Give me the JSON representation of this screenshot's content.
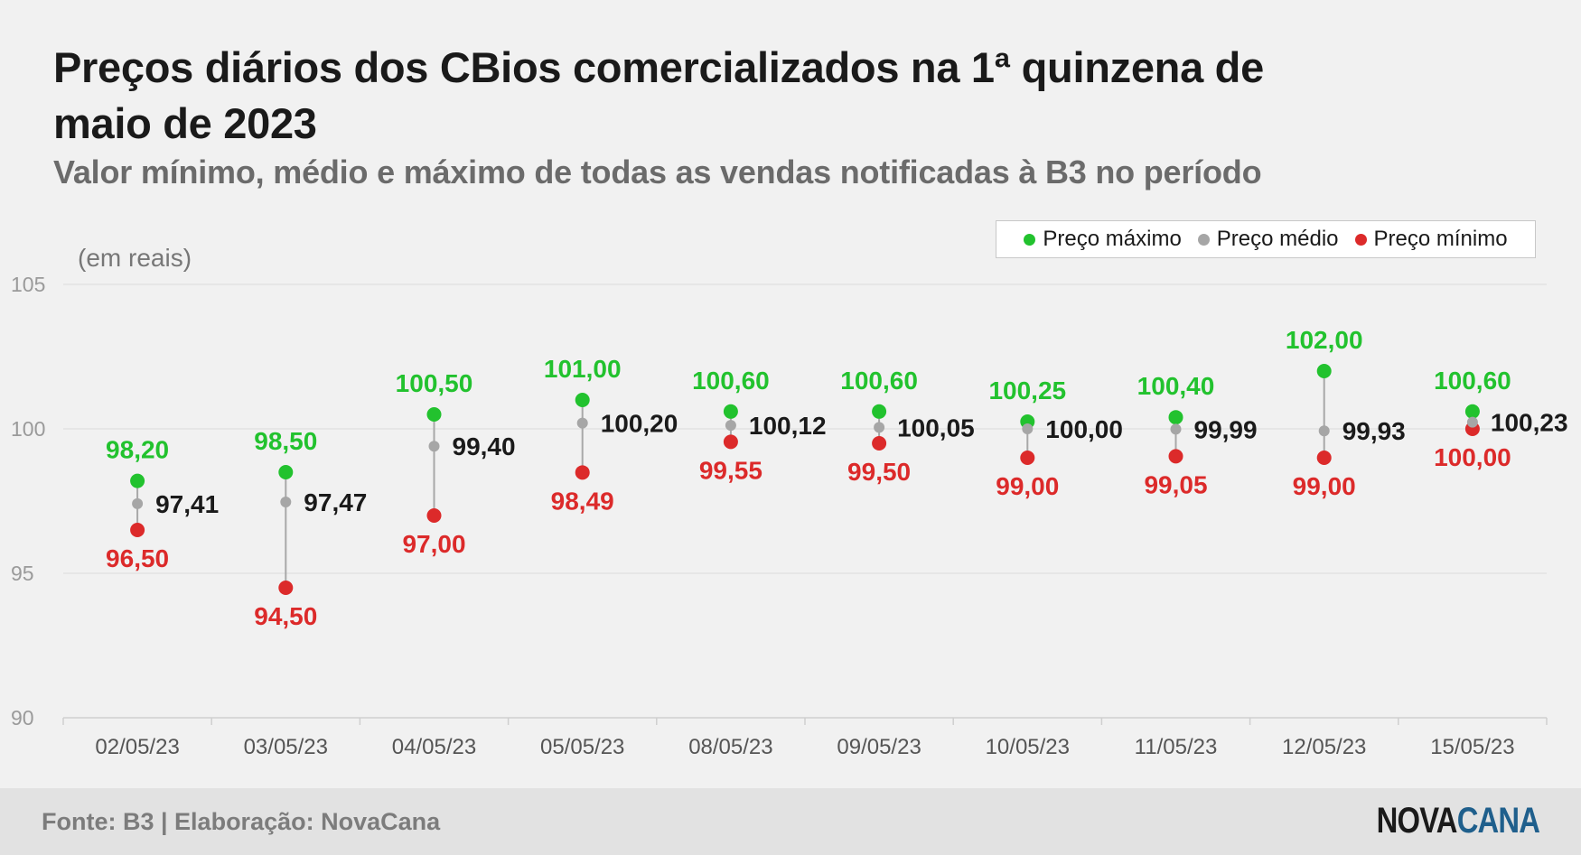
{
  "title": "Preços diários dos CBios comercializados na 1ª quinzena de maio de 2023",
  "subtitle": "Valor mínimo, médio e máximo de todas as vendas notificadas à B3 no período",
  "unit_label": "(em reais)",
  "source": "Fonte: B3 | Elaboração: NovaCana",
  "logo": {
    "part1": "NOVA",
    "part2": "CANA"
  },
  "colors": {
    "max": "#22c22e",
    "mid": "#a6a6a6",
    "min": "#dc2a2a"
  },
  "legend": {
    "max": "Preço máximo",
    "mid": "Preço médio",
    "min": "Preço mínimo"
  },
  "chart_data": {
    "type": "dot-range",
    "categories": [
      "02/05/23",
      "03/05/23",
      "04/05/23",
      "05/05/23",
      "08/05/23",
      "09/05/23",
      "10/05/23",
      "11/05/23",
      "12/05/23",
      "15/05/23"
    ],
    "series": [
      {
        "name": "Preço máximo",
        "values": [
          98.2,
          98.5,
          100.5,
          101.0,
          100.6,
          100.6,
          100.25,
          100.4,
          102.0,
          100.6
        ],
        "labels": [
          "98,20",
          "98,50",
          "100,50",
          "101,00",
          "100,60",
          "100,60",
          "100,25",
          "100,40",
          "102,00",
          "100,60"
        ]
      },
      {
        "name": "Preço médio",
        "values": [
          97.41,
          97.47,
          99.4,
          100.2,
          100.12,
          100.05,
          100.0,
          99.99,
          99.93,
          100.23
        ],
        "labels": [
          "97,41",
          "97,47",
          "99,40",
          "100,20",
          "100,12",
          "100,05",
          "100,00",
          "99,99",
          "99,93",
          "100,23"
        ]
      },
      {
        "name": "Preço mínimo",
        "values": [
          96.5,
          94.5,
          97.0,
          98.49,
          99.55,
          99.5,
          99.0,
          99.05,
          99.0,
          100.0
        ],
        "labels": [
          "96,50",
          "94,50",
          "97,00",
          "98,49",
          "99,55",
          "99,50",
          "99,00",
          "99,05",
          "99,00",
          "100,00"
        ]
      }
    ],
    "ylim": [
      90,
      105
    ],
    "yticks": [
      "90",
      "95",
      "100",
      "105"
    ],
    "grid": true,
    "legend_position": "top-right"
  }
}
